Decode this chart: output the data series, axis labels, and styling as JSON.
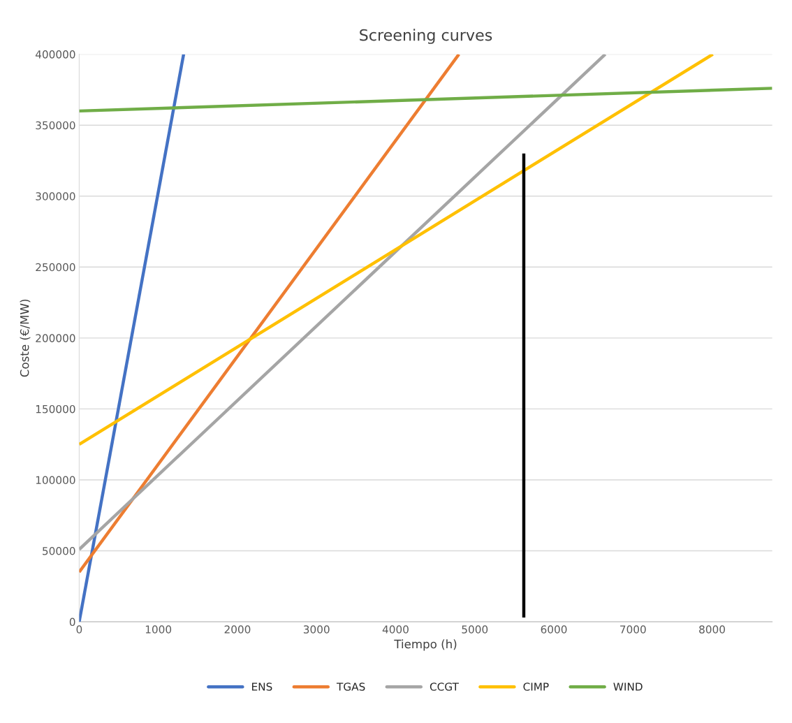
{
  "chart_data": {
    "type": "line",
    "title": "Screening curves",
    "xlabel": "Tiempo (h)",
    "ylabel": "Coste (€/MW)",
    "xlim": [
      0,
      8760
    ],
    "xticks": [
      0,
      1000,
      2000,
      3000,
      4000,
      5000,
      6000,
      7000,
      8000
    ],
    "ylim": [
      0,
      400000
    ],
    "yticks": [
      0,
      50000,
      100000,
      150000,
      200000,
      250000,
      300000,
      350000,
      400000
    ],
    "grid": "y",
    "legend": "bottom",
    "line_style": "solid",
    "marker": "none",
    "series": [
      {
        "name": "ENS",
        "color": "#4472c4",
        "x": [
          0,
          1320
        ],
        "values": [
          0,
          400000
        ]
      },
      {
        "name": "TGAS",
        "color": "#ed7d31",
        "x": [
          0,
          4800
        ],
        "values": [
          35000,
          400000
        ]
      },
      {
        "name": "CCGT",
        "color": "#a5a5a5",
        "x": [
          0,
          6650
        ],
        "values": [
          51000,
          400000
        ]
      },
      {
        "name": "CIMP",
        "color": "#ffc000",
        "x": [
          0,
          8010
        ],
        "values": [
          125000,
          400000
        ]
      },
      {
        "name": "WIND",
        "color": "#70ad47",
        "x": [
          0,
          8760
        ],
        "values": [
          360000,
          376000
        ]
      },
      {
        "color": "#000000",
        "x": [
          5620,
          5620
        ],
        "values": [
          3000,
          330000
        ]
      }
    ]
  }
}
